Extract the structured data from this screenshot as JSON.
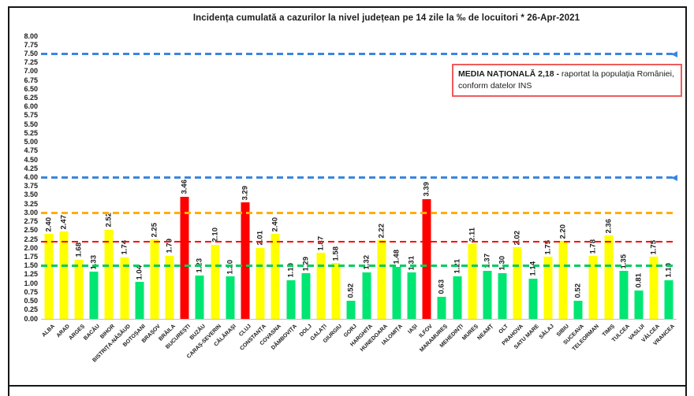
{
  "note_box": {
    "bold": "MEDIA NAȚIONALĂ  2,18 -",
    "rest": "raportat la populația României, conform datelor INS",
    "border_color": "#f05a5a"
  },
  "chart_data": {
    "type": "bar",
    "title": "Incidența cumulată a cazurilor la nivel județean pe 14 zile la ‰ de locuitori *   26-Apr-2021",
    "date": "26-Apr-2021",
    "unit": "‰ de locuitori",
    "ylim": [
      0,
      8
    ],
    "ytick_step": 0.25,
    "grid": false,
    "legend": "none",
    "categories": [
      "ALBA",
      "ARAD",
      "ARGEȘ",
      "BACĂU",
      "BIHOR",
      "BISTRIȚA-NĂSĂUD",
      "BOTOȘANI",
      "BRAȘOV",
      "BRĂILA",
      "BUCUREȘTI",
      "BUZĂU",
      "CARAȘ-SEVERIN",
      "CĂLĂRAȘI",
      "CLUJ",
      "CONSTANȚA",
      "COVASNA",
      "DÂMBOVIȚA",
      "DOLJ",
      "GALAȚI",
      "GIURGIU",
      "GORJ",
      "HARGHITA",
      "HUNEDOARA",
      "IALOMIȚA",
      "IAȘI",
      "ILFOV",
      "MARAMUREȘ",
      "MEHEDINȚI",
      "MUREȘ",
      "NEAMȚ",
      "OLT",
      "PRAHOVA",
      "SATU MARE",
      "SĂLAJ",
      "SIBIU",
      "SUCEAVA",
      "TELEORMAN",
      "TIMIȘ",
      "TULCEA",
      "VASLUI",
      "VÂLCEA",
      "VRANCEA"
    ],
    "values": [
      2.4,
      2.47,
      1.68,
      1.33,
      2.52,
      1.74,
      1.04,
      2.25,
      1.79,
      3.46,
      1.23,
      2.1,
      1.2,
      3.29,
      2.01,
      2.4,
      1.1,
      1.29,
      1.87,
      1.58,
      0.52,
      1.32,
      2.22,
      1.48,
      1.31,
      3.39,
      0.63,
      1.21,
      2.11,
      1.37,
      1.3,
      2.02,
      1.14,
      1.75,
      2.2,
      0.52,
      1.78,
      2.36,
      1.35,
      0.81,
      1.75,
      1.1
    ],
    "bar_color_rules": [
      {
        "max": 1.5,
        "color": "#00e672",
        "meaning": "sub 1,5"
      },
      {
        "max": 3.0,
        "color": "#ffff00",
        "meaning": "1,5 - 3"
      },
      {
        "max": 99.0,
        "color": "#ff0000",
        "meaning": "peste 3"
      }
    ],
    "reference_lines": [
      {
        "value": 7.5,
        "color": "#3a86e0",
        "style": "dashed",
        "arrow": true
      },
      {
        "value": 4.0,
        "color": "#3a86e0",
        "style": "dashed",
        "arrow": true
      },
      {
        "value": 3.0,
        "color": "#ffae00",
        "style": "dashed",
        "arrow": false
      },
      {
        "value": 2.18,
        "color": "#ff0000",
        "style": "dashed",
        "arrow": false
      },
      {
        "value": 1.5,
        "color": "#00cc5c",
        "style": "dashed",
        "arrow": false
      }
    ],
    "national_average": 2.18
  }
}
